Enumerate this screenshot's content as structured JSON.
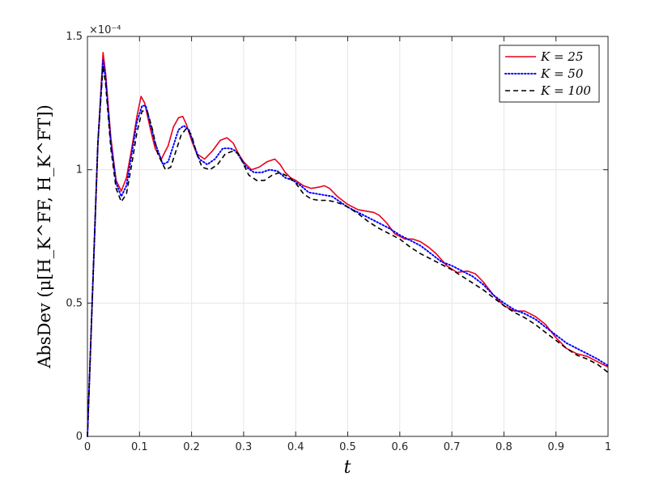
{
  "chart_data": {
    "type": "line",
    "title": "",
    "xlabel": "t",
    "ylabel": "AbsDev (μ[H_K^FF, H_K^FT])",
    "y_exponent_label": "×10⁻⁴",
    "xlim": [
      0,
      1
    ],
    "ylim": [
      0,
      1.5
    ],
    "x_ticks": [
      "0",
      "0.1",
      "0.2",
      "0.3",
      "0.4",
      "0.5",
      "0.6",
      "0.7",
      "0.8",
      "0.9",
      "1"
    ],
    "y_ticks": [
      "0",
      "0.5",
      "1",
      "1.5"
    ],
    "grid": true,
    "legend_position": "top-right",
    "series": [
      {
        "name": "K = 25",
        "color": "#e8001c",
        "style": "solid",
        "x": [
          0,
          0.01,
          0.02,
          0.03,
          0.035,
          0.045,
          0.055,
          0.065,
          0.075,
          0.085,
          0.095,
          0.103,
          0.11,
          0.12,
          0.13,
          0.142,
          0.155,
          0.165,
          0.175,
          0.183,
          0.19,
          0.2,
          0.21,
          0.225,
          0.24,
          0.255,
          0.268,
          0.28,
          0.29,
          0.3,
          0.315,
          0.33,
          0.345,
          0.36,
          0.37,
          0.38,
          0.39,
          0.4,
          0.415,
          0.43,
          0.445,
          0.455,
          0.465,
          0.48,
          0.5,
          0.52,
          0.535,
          0.55,
          0.56,
          0.575,
          0.59,
          0.61,
          0.625,
          0.64,
          0.655,
          0.67,
          0.69,
          0.71,
          0.73,
          0.745,
          0.76,
          0.78,
          0.8,
          0.82,
          0.84,
          0.86,
          0.88,
          0.9,
          0.92,
          0.94,
          0.96,
          0.98,
          1.0
        ],
        "values": [
          0,
          0.55,
          1.1,
          1.44,
          1.36,
          1.12,
          0.96,
          0.92,
          0.97,
          1.08,
          1.2,
          1.275,
          1.25,
          1.16,
          1.08,
          1.04,
          1.09,
          1.16,
          1.195,
          1.2,
          1.17,
          1.11,
          1.06,
          1.04,
          1.07,
          1.11,
          1.12,
          1.1,
          1.06,
          1.03,
          1.0,
          1.01,
          1.03,
          1.04,
          1.02,
          0.99,
          0.97,
          0.96,
          0.94,
          0.93,
          0.935,
          0.94,
          0.93,
          0.9,
          0.87,
          0.85,
          0.845,
          0.84,
          0.83,
          0.8,
          0.76,
          0.74,
          0.74,
          0.73,
          0.71,
          0.685,
          0.64,
          0.615,
          0.62,
          0.61,
          0.58,
          0.53,
          0.49,
          0.47,
          0.47,
          0.45,
          0.42,
          0.37,
          0.33,
          0.31,
          0.3,
          0.28,
          0.26
        ]
      },
      {
        "name": "K = 50",
        "color": "#0000ff",
        "style": "dotted",
        "x": [
          0,
          0.01,
          0.02,
          0.03,
          0.035,
          0.045,
          0.055,
          0.065,
          0.075,
          0.085,
          0.095,
          0.105,
          0.112,
          0.12,
          0.13,
          0.145,
          0.155,
          0.165,
          0.175,
          0.185,
          0.195,
          0.205,
          0.215,
          0.23,
          0.245,
          0.26,
          0.275,
          0.285,
          0.295,
          0.305,
          0.32,
          0.335,
          0.35,
          0.365,
          0.38,
          0.395,
          0.41,
          0.425,
          0.44,
          0.455,
          0.47,
          0.485,
          0.5,
          0.52,
          0.54,
          0.56,
          0.58,
          0.6,
          0.62,
          0.64,
          0.66,
          0.68,
          0.7,
          0.72,
          0.74,
          0.76,
          0.78,
          0.8,
          0.82,
          0.84,
          0.86,
          0.88,
          0.9,
          0.92,
          0.94,
          0.96,
          0.98,
          1.0
        ],
        "values": [
          0,
          0.55,
          1.1,
          1.41,
          1.34,
          1.1,
          0.95,
          0.9,
          0.94,
          1.06,
          1.18,
          1.24,
          1.24,
          1.18,
          1.1,
          1.02,
          1.03,
          1.09,
          1.15,
          1.165,
          1.15,
          1.09,
          1.04,
          1.02,
          1.04,
          1.08,
          1.08,
          1.07,
          1.04,
          1.01,
          0.99,
          0.99,
          1.0,
          0.995,
          0.97,
          0.96,
          0.94,
          0.915,
          0.91,
          0.905,
          0.9,
          0.88,
          0.86,
          0.84,
          0.82,
          0.8,
          0.78,
          0.755,
          0.735,
          0.715,
          0.685,
          0.655,
          0.64,
          0.62,
          0.6,
          0.57,
          0.53,
          0.5,
          0.475,
          0.46,
          0.44,
          0.41,
          0.38,
          0.35,
          0.33,
          0.31,
          0.29,
          0.265
        ]
      },
      {
        "name": "K = 100",
        "color": "#000000",
        "style": "dashed",
        "x": [
          0,
          0.01,
          0.02,
          0.03,
          0.035,
          0.045,
          0.055,
          0.065,
          0.075,
          0.085,
          0.095,
          0.105,
          0.115,
          0.125,
          0.135,
          0.15,
          0.16,
          0.17,
          0.18,
          0.19,
          0.2,
          0.21,
          0.22,
          0.235,
          0.25,
          0.265,
          0.28,
          0.29,
          0.3,
          0.31,
          0.325,
          0.34,
          0.355,
          0.37,
          0.385,
          0.4,
          0.415,
          0.43,
          0.445,
          0.46,
          0.475,
          0.49,
          0.5,
          0.52,
          0.54,
          0.56,
          0.58,
          0.6,
          0.62,
          0.64,
          0.66,
          0.68,
          0.7,
          0.72,
          0.74,
          0.76,
          0.78,
          0.8,
          0.82,
          0.84,
          0.86,
          0.88,
          0.9,
          0.92,
          0.94,
          0.96,
          0.98,
          1.0
        ],
        "values": [
          0,
          0.55,
          1.1,
          1.39,
          1.32,
          1.08,
          0.93,
          0.88,
          0.91,
          1.02,
          1.14,
          1.22,
          1.22,
          1.15,
          1.06,
          1.0,
          1.01,
          1.07,
          1.13,
          1.155,
          1.13,
          1.06,
          1.01,
          1.0,
          1.02,
          1.06,
          1.07,
          1.06,
          1.02,
          0.98,
          0.96,
          0.96,
          0.98,
          0.99,
          0.975,
          0.95,
          0.91,
          0.89,
          0.885,
          0.885,
          0.88,
          0.87,
          0.86,
          0.835,
          0.805,
          0.78,
          0.76,
          0.74,
          0.71,
          0.685,
          0.665,
          0.645,
          0.625,
          0.6,
          0.575,
          0.55,
          0.52,
          0.49,
          0.465,
          0.445,
          0.42,
          0.39,
          0.36,
          0.33,
          0.305,
          0.29,
          0.27,
          0.24
        ]
      }
    ]
  }
}
